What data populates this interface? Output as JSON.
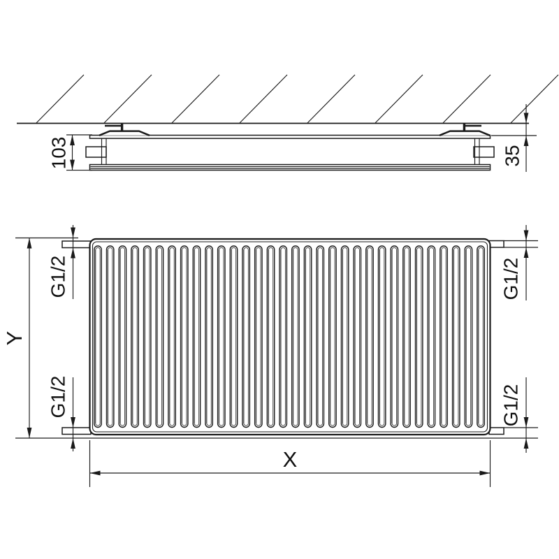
{
  "colors": {
    "line": "#1a1a1a",
    "background": "#ffffff"
  },
  "side_view": {
    "depth_dim": "103",
    "wall_gap_dim": "35",
    "hatch_line_count": 8
  },
  "front_view": {
    "width_dim": "X",
    "height_dim": "Y",
    "flute_count": 32,
    "connections": {
      "top_left": "G1/2",
      "bottom_left": "G1/2",
      "top_right": "G1/2",
      "bottom_right": "G1/2"
    }
  }
}
